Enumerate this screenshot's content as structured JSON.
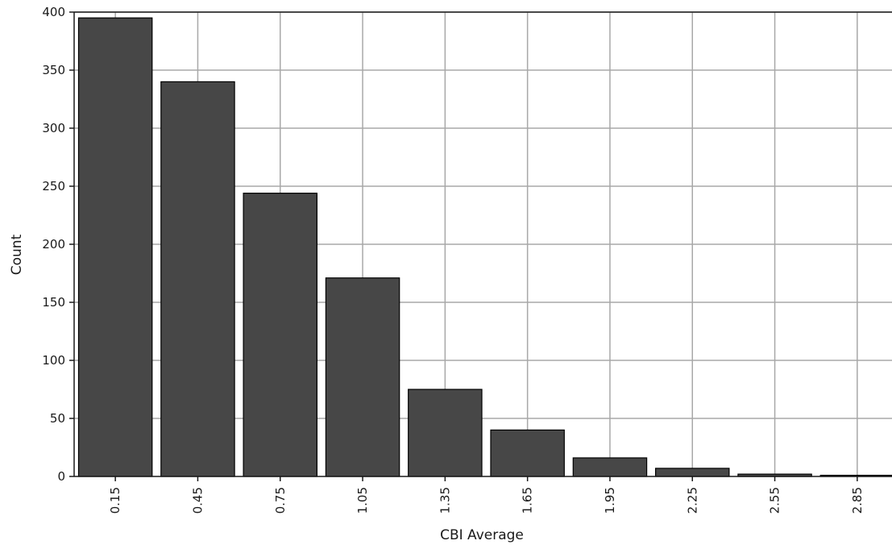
{
  "chart_data": {
    "type": "bar",
    "title": "",
    "xlabel": "CBI Average",
    "ylabel": "Count",
    "categories": [
      "0.15",
      "0.45",
      "0.75",
      "1.05",
      "1.35",
      "1.65",
      "1.95",
      "2.25",
      "2.55",
      "2.85"
    ],
    "values": [
      395,
      340,
      244,
      171,
      75,
      40,
      16,
      7,
      2,
      1
    ],
    "ylim": [
      0,
      400
    ],
    "yticks": [
      0,
      50,
      100,
      150,
      200,
      250,
      300,
      350,
      400
    ],
    "grid": true,
    "legend": "none",
    "colors": {
      "bar": "#474747",
      "grid": "#a8a8a8",
      "axis": "#1a1a1a",
      "background": "#ffffff"
    }
  }
}
